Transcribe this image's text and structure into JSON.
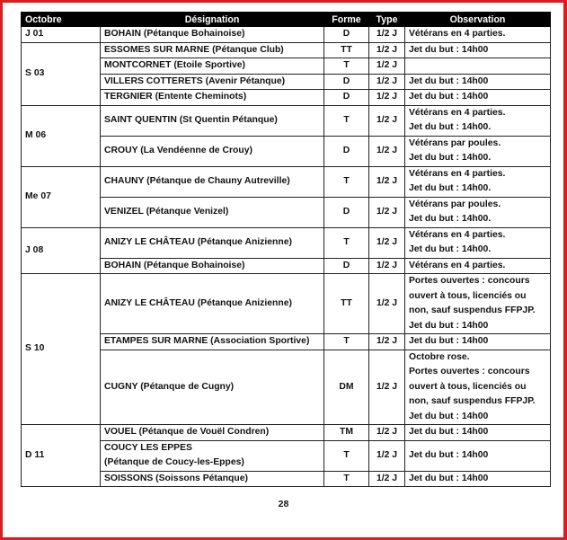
{
  "headers": [
    "Octobre",
    "Désignation",
    "Forme",
    "Type",
    "Observation"
  ],
  "groups": [
    {
      "date": "J 01",
      "rows": [
        {
          "designation": [
            "BOHAIN (Pétanque Bohainoise)"
          ],
          "forme": "D",
          "type": "1/2 J",
          "observation": [
            "Vétérans en 4 parties."
          ]
        }
      ]
    },
    {
      "date": "S 03",
      "rows": [
        {
          "designation": [
            "ESSOMES SUR MARNE (Pétanque Club)"
          ],
          "forme": "TT",
          "type": "1/2 J",
          "observation": [
            "Jet du but : 14h00"
          ]
        },
        {
          "designation": [
            "MONTCORNET (Etoile Sportive)"
          ],
          "forme": "T",
          "type": "1/2 J",
          "observation": []
        },
        {
          "designation": [
            "VILLERS COTTERETS (Avenir Pétanque)"
          ],
          "forme": "D",
          "type": "1/2 J",
          "observation": [
            "Jet du but : 14h00"
          ]
        },
        {
          "designation": [
            "TERGNIER (Entente Cheminots)"
          ],
          "forme": "D",
          "type": "1/2 J",
          "observation": [
            "Jet du but : 14h00"
          ]
        }
      ]
    },
    {
      "date": "M 06",
      "rows": [
        {
          "designation": [
            "SAINT QUENTIN (St Quentin Pétanque)"
          ],
          "forme": "T",
          "type": "1/2 J",
          "observation": [
            "Vétérans en 4 parties.",
            "Jet du but : 14h00."
          ]
        },
        {
          "designation": [
            "CROUY (La Vendéenne de Crouy)"
          ],
          "forme": "D",
          "type": "1/2 J",
          "observation": [
            "Vétérans par poules.",
            "Jet du but : 14h00."
          ]
        }
      ]
    },
    {
      "date": "Me 07",
      "rows": [
        {
          "designation": [
            "CHAUNY (Pétanque de Chauny Autreville)"
          ],
          "forme": "T",
          "type": "1/2 J",
          "observation": [
            "Vétérans en 4 parties.",
            "Jet du but : 14h00."
          ]
        },
        {
          "designation": [
            "VENIZEL (Pétanque Venizel)"
          ],
          "forme": "D",
          "type": "1/2 J",
          "observation": [
            "Vétérans par poules.",
            "Jet du but : 14h00."
          ]
        }
      ]
    },
    {
      "date": "J 08",
      "rows": [
        {
          "designation": [
            "ANIZY LE CHÂTEAU (Pétanque Anizienne)"
          ],
          "forme": "T",
          "type": "1/2 J",
          "observation": [
            "Vétérans en 4 parties.",
            "Jet du but : 14h00."
          ]
        },
        {
          "designation": [
            "BOHAIN (Pétanque Bohainoise)"
          ],
          "forme": "D",
          "type": "1/2 J",
          "observation": [
            "Vétérans en 4 parties."
          ]
        }
      ]
    },
    {
      "date": "S 10",
      "rows": [
        {
          "designation": [
            "ANIZY LE CHÂTEAU (Pétanque Anizienne)"
          ],
          "forme": "TT",
          "type": "1/2 J",
          "observation": [
            "Portes ouvertes : concours",
            "ouvert à tous, licenciés ou",
            "non, sauf suspendus FFPJP.",
            "Jet du but : 14h00"
          ]
        },
        {
          "designation": [
            "ETAMPES SUR MARNE (Association Sportive)"
          ],
          "forme": "T",
          "type": "1/2 J",
          "observation": [
            "Jet du but : 14h00"
          ]
        },
        {
          "designation": [
            "CUGNY (Pétanque de Cugny)"
          ],
          "forme": "DM",
          "type": "1/2 J",
          "observation": [
            "Octobre rose.",
            "Portes ouvertes : concours",
            "ouvert à tous, licenciés ou",
            "non, sauf suspendus FFPJP.",
            "Jet du but : 14h00"
          ]
        }
      ]
    },
    {
      "date": "D 11",
      "rows": [
        {
          "designation": [
            "VOUEL (Pétanque de Vouël Condren)"
          ],
          "forme": "TM",
          "type": "1/2 J",
          "observation": [
            "Jet du but : 14h00"
          ]
        },
        {
          "designation": [
            "COUCY LES EPPES",
            "(Pétanque de Coucy-les-Eppes)"
          ],
          "forme": "T",
          "type": "1/2 J",
          "observation": [
            "Jet du but : 14h00"
          ]
        },
        {
          "designation": [
            "SOISSONS (Soissons Pétanque)"
          ],
          "forme": "T",
          "type": "1/2 J",
          "observation": [
            "Jet du but : 14h00"
          ]
        }
      ]
    }
  ],
  "page_number": "28",
  "colors": {
    "frame": "#d81e1e",
    "header_bg": "#000000",
    "header_text": "#ffffff"
  }
}
